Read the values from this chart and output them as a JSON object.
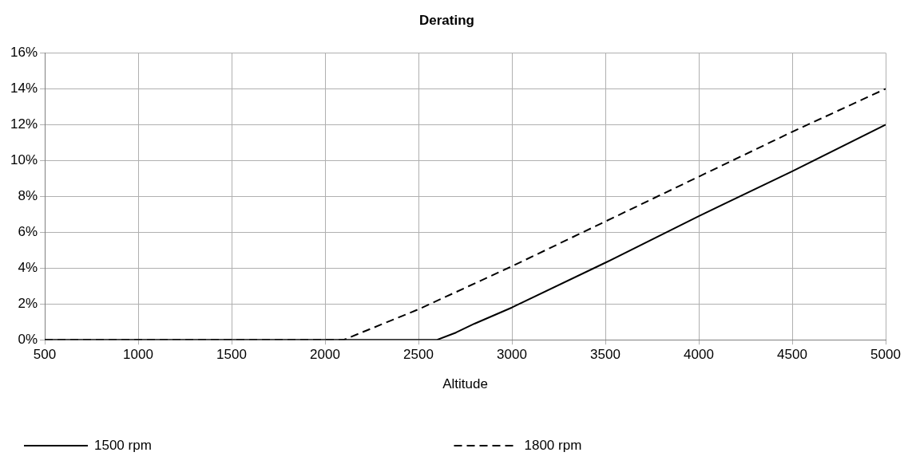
{
  "chart_data": {
    "type": "line",
    "title": "Derating",
    "xlabel": "Altitude",
    "xlim": [
      500,
      5000
    ],
    "xticks": [
      500,
      1000,
      1500,
      2000,
      2500,
      3000,
      3500,
      4000,
      4500,
      5000
    ],
    "ylim": [
      0,
      16
    ],
    "yticks": [
      {
        "value": 0,
        "label": "0%"
      },
      {
        "value": 2,
        "label": "2%"
      },
      {
        "value": 4,
        "label": "4%"
      },
      {
        "value": 6,
        "label": "6%"
      },
      {
        "value": 8,
        "label": "8%"
      },
      {
        "value": 10,
        "label": "10%"
      },
      {
        "value": 12,
        "label": "12%"
      },
      {
        "value": 14,
        "label": "14%"
      },
      {
        "value": 16,
        "label": "16%"
      }
    ],
    "grid": true,
    "legend": "bottom",
    "marker": "none",
    "series": [
      {
        "name": "1500 rpm",
        "color": "#000000",
        "line_style": "solid",
        "x": [
          500,
          1000,
          1500,
          2000,
          2600,
          2700,
          2800,
          3000,
          3500,
          4000,
          4500,
          5000
        ],
        "values": [
          0,
          0,
          0,
          0,
          0,
          0.4,
          0.9,
          1.8,
          4.3,
          6.9,
          9.4,
          12
        ]
      },
      {
        "name": "1800 rpm",
        "color": "#000000",
        "line_style": "dashed",
        "x": [
          500,
          1000,
          1500,
          2000,
          2100,
          2500,
          3000,
          3500,
          4000,
          4500,
          5000
        ],
        "values": [
          0,
          0,
          0,
          0,
          0,
          1.7,
          4.1,
          6.6,
          9.1,
          11.6,
          14
        ]
      }
    ]
  }
}
